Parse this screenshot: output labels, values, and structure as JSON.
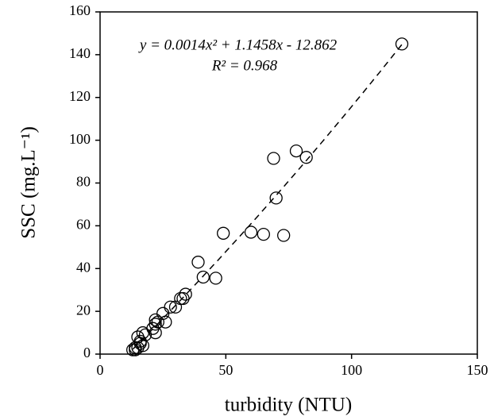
{
  "chart_data": {
    "type": "scatter",
    "x_label": "turbidity (NTU)",
    "y_label": "SSC (mg.L⁻¹)",
    "xlim": [
      0,
      150
    ],
    "xticks": [
      0,
      50,
      100,
      150
    ],
    "ylim": [
      0,
      160
    ],
    "yticks": [
      0,
      20,
      40,
      60,
      80,
      100,
      120,
      140,
      160
    ],
    "series": [
      {
        "color": "#000000",
        "x": [
          120,
          78,
          82,
          69,
          70,
          49,
          60,
          65,
          73,
          39,
          41,
          46,
          34,
          33,
          32,
          30,
          28,
          25,
          26,
          22,
          22,
          23,
          21,
          22,
          18,
          17,
          15,
          16,
          17,
          16,
          14,
          13,
          14,
          15
        ],
        "values": [
          145,
          95,
          92,
          91.5,
          73,
          56.5,
          57,
          56,
          55.5,
          43,
          36,
          35.5,
          28,
          26,
          26,
          22,
          22,
          19,
          15,
          16,
          14,
          15,
          12,
          10,
          9,
          10,
          8,
          6,
          4,
          5,
          3,
          2,
          2,
          3
        ]
      }
    ],
    "trendline": {
      "equation": "y = 0.0014x² + 1.1458x - 12.862",
      "coefficients": [
        0.0014,
        1.1458,
        -12.862
      ],
      "r2_label": "R² = 0.968",
      "r2": 0.968
    }
  }
}
